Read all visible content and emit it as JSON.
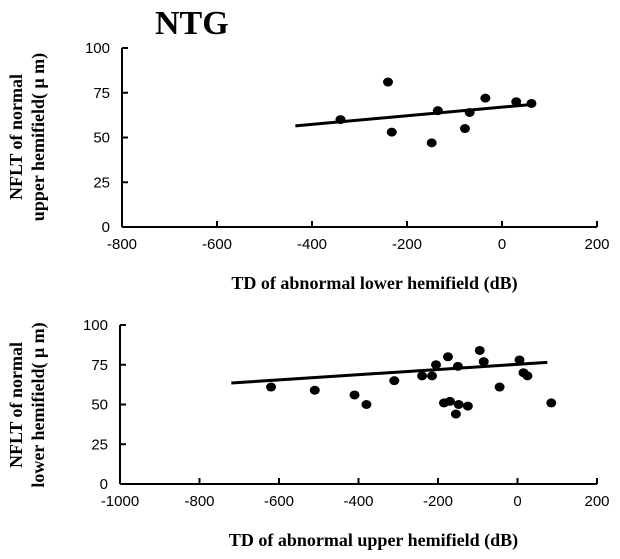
{
  "figure_title": "NTG",
  "chart_data": [
    {
      "type": "scatter",
      "title": "",
      "xlabel": "TD of abnormal lower hemifield (dB)",
      "ylabel_lines": [
        "NFLT  of normal",
        "upper hemifield( μ m)"
      ],
      "xlim": [
        -800,
        200
      ],
      "ylim": [
        0,
        100
      ],
      "xticks": [
        -800,
        -600,
        -400,
        -200,
        0,
        200
      ],
      "yticks": [
        0,
        25,
        50,
        75,
        100
      ],
      "grid": false,
      "points": {
        "x": [
          -340,
          -240,
          -232,
          -148,
          -135,
          -78,
          -68,
          -35,
          30,
          62
        ],
        "y": [
          60,
          81,
          53,
          47,
          65,
          55,
          64,
          72,
          70,
          69
        ]
      },
      "trendline": {
        "x": [
          -435,
          65
        ],
        "y": [
          56.5,
          68.5
        ]
      }
    },
    {
      "type": "scatter",
      "title": "",
      "xlabel": "TD of abnormal upper hemifield (dB)",
      "ylabel_lines": [
        "NFLT  of normal",
        "lower hemifield( μ m)"
      ],
      "xlim": [
        -1000,
        200
      ],
      "ylim": [
        0,
        100
      ],
      "xticks": [
        -1000,
        -800,
        -600,
        -400,
        -200,
        0,
        200
      ],
      "yticks": [
        0,
        25,
        50,
        75,
        100
      ],
      "grid": false,
      "points": {
        "x": [
          -620,
          -510,
          -410,
          -380,
          -310,
          -240,
          -215,
          -205,
          -185,
          -175,
          -170,
          -155,
          -150,
          -148,
          -125,
          -95,
          -85,
          -45,
          5,
          15,
          25,
          85
        ],
        "y": [
          61,
          59,
          56,
          50,
          65,
          68,
          68,
          75,
          51,
          80,
          52,
          44,
          74,
          50,
          49,
          84,
          77,
          61,
          78,
          70,
          68,
          51
        ]
      },
      "trendline": {
        "x": [
          -720,
          75
        ],
        "y": [
          63.5,
          76.5
        ]
      }
    }
  ]
}
